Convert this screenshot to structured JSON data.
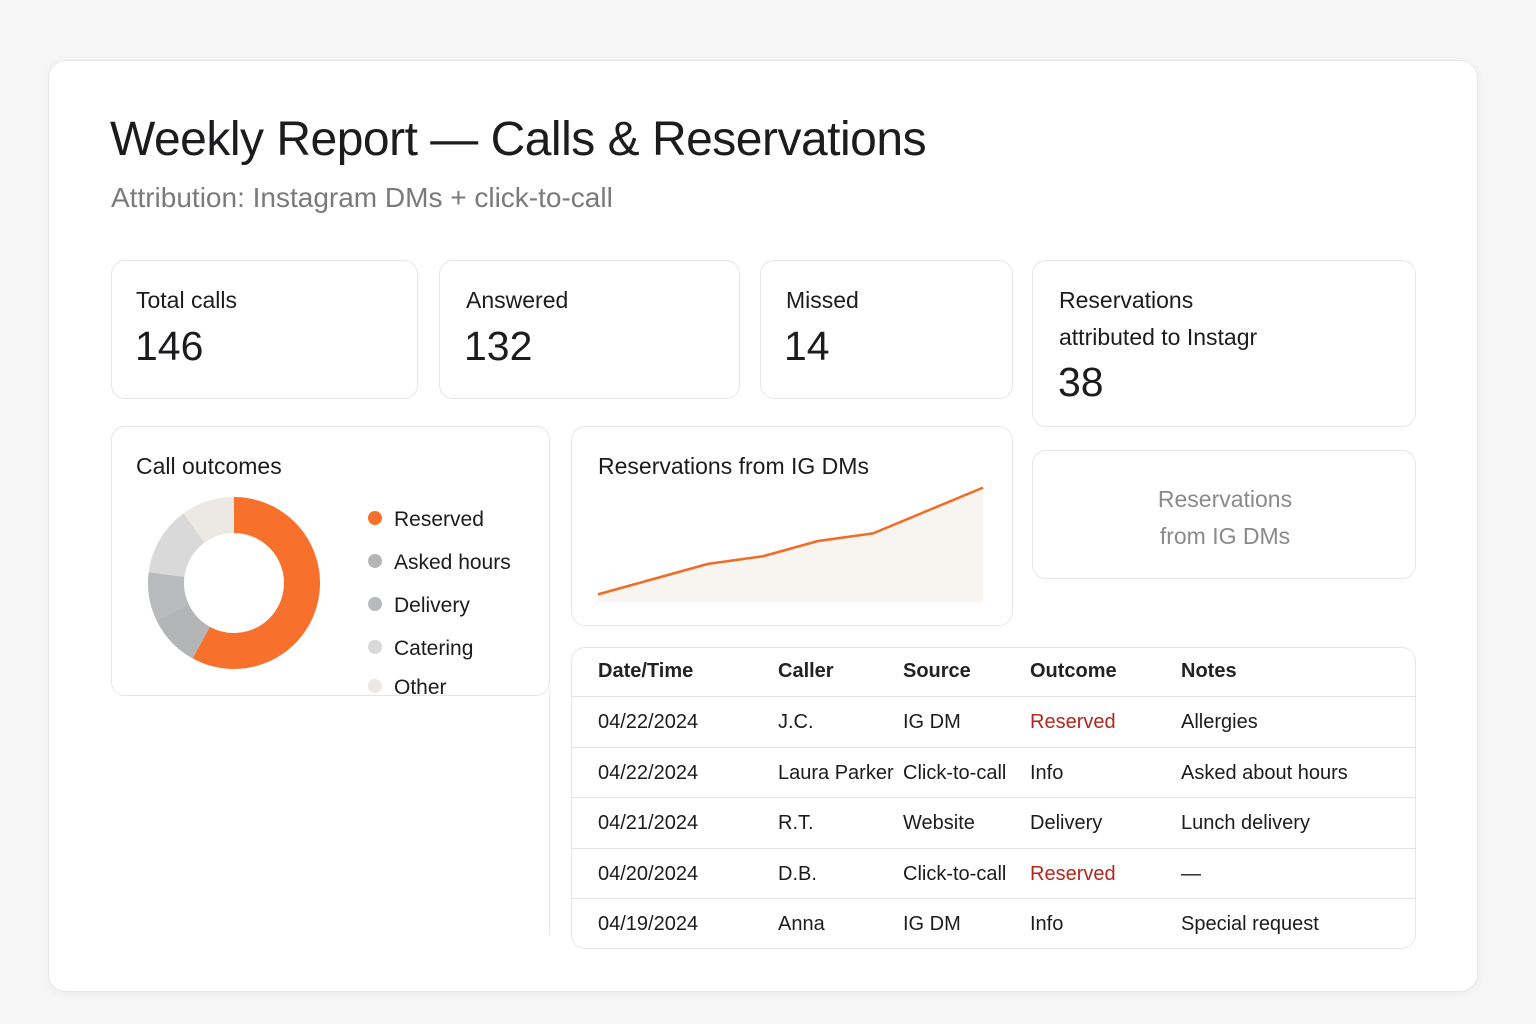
{
  "header": {
    "title": "Weekly Report — Calls & Reservations",
    "subtitle": "Attribution: Instagram DMs + click-to-call"
  },
  "stats": [
    {
      "label": "Total calls",
      "value": 146
    },
    {
      "label": "Answered",
      "value": 132
    },
    {
      "label": "Missed",
      "value": 14
    },
    {
      "label": "Reservations attributed to Instagr",
      "value": 38
    }
  ],
  "placeholder": "Reservations from IG DMs",
  "chart_data": [
    {
      "type": "pie",
      "title": "Call outcomes",
      "donut": true,
      "categories": [
        "Reserved",
        "Asked hours",
        "Delivery",
        "Catering",
        "Other"
      ],
      "values": [
        58,
        10,
        9,
        13,
        10
      ],
      "colors": [
        "#f7712c",
        "#b4b5b7",
        "#b9babc",
        "#d9d9d9",
        "#ece8e3"
      ]
    },
    {
      "type": "line",
      "title": "Reservations from IG DMs",
      "categories": [
        null,
        null,
        null,
        null,
        null,
        null,
        null,
        null
      ],
      "values": [
        1,
        3,
        5,
        6,
        8,
        9,
        12,
        15
      ],
      "color": "#f26b22",
      "area_color": "#f8f4f0",
      "ylim": [
        0,
        16
      ]
    }
  ],
  "table": {
    "columns": [
      "Date/Time",
      "Caller",
      "Source",
      "Outcome",
      "Notes"
    ],
    "rows": [
      [
        "04/22/2024",
        "J.C.",
        "IG DM",
        "Reserved",
        "Allergies"
      ],
      [
        "04/22/2024",
        "Laura Parker",
        "Click-to-call",
        "Info",
        "Asked about hours"
      ],
      [
        "04/21/2024",
        "R.T.",
        "Website",
        "Delivery",
        "Lunch delivery"
      ],
      [
        "04/20/2024",
        "D.B.",
        "Click-to-call",
        "Reserved",
        "—"
      ],
      [
        "04/19/2024",
        "Anna",
        "IG DM",
        "Info",
        "Special request"
      ]
    ]
  }
}
